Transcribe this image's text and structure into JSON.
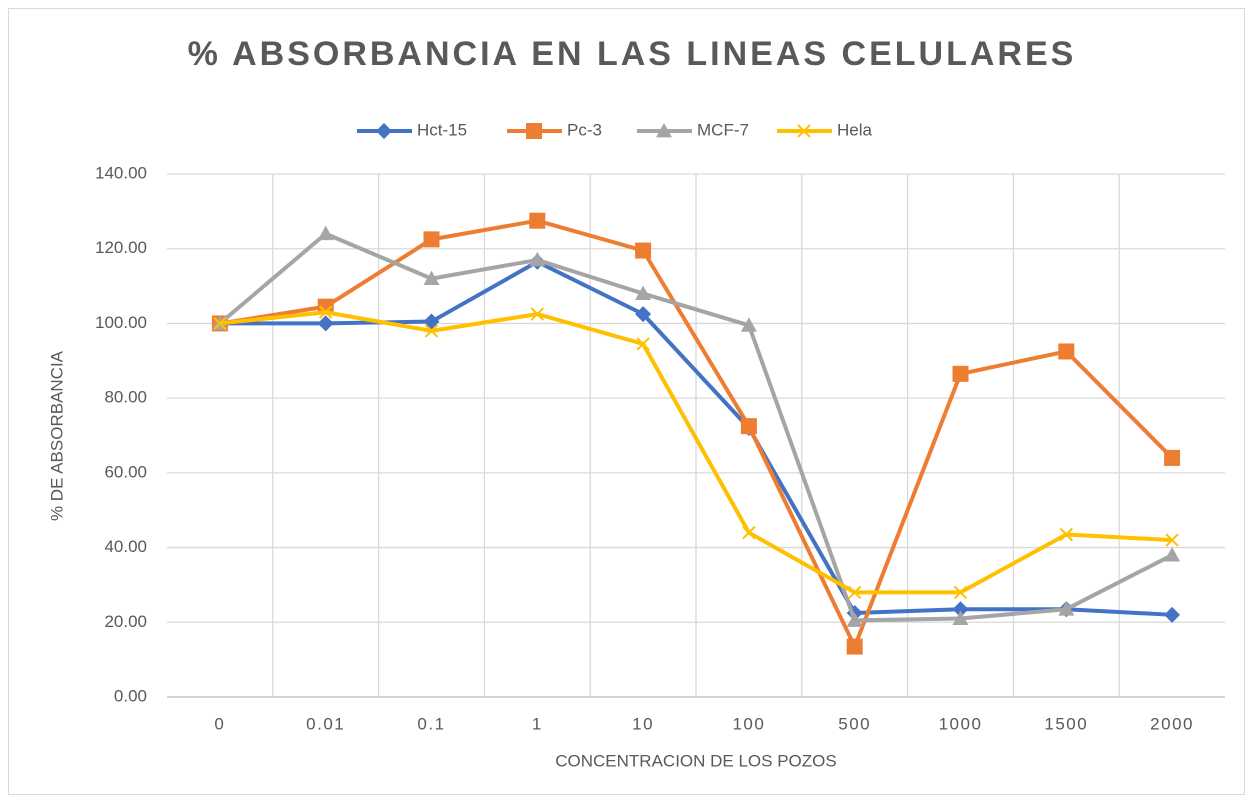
{
  "chart_data": {
    "type": "line",
    "title": "% ABSORBANCIA EN LAS LINEAS CELULARES",
    "xlabel": "CONCENTRACION DE LOS POZOS",
    "ylabel": "% DE ABSORBANCIA",
    "categories": [
      "0",
      "0.01",
      "0.1",
      "1",
      "10",
      "100",
      "500",
      "1000",
      "1500",
      "2000"
    ],
    "series": [
      {
        "name": "Hct-15",
        "color": "#4472c4",
        "marker": "diamond",
        "values": [
          100,
          100,
          100.5,
          116.5,
          102.5,
          72,
          22.5,
          23.5,
          23.5,
          22
        ]
      },
      {
        "name": "Pc-3",
        "color": "#ed7d31",
        "marker": "square",
        "values": [
          100,
          104.5,
          122.5,
          127.5,
          119.5,
          72.5,
          13.5,
          86.5,
          92.5,
          64
        ]
      },
      {
        "name": "MCF-7",
        "color": "#a5a5a5",
        "marker": "triangle",
        "values": [
          100,
          124,
          112,
          117,
          108,
          99.5,
          20.5,
          21,
          23.5,
          38
        ]
      },
      {
        "name": "Hela",
        "color": "#ffc000",
        "marker": "x",
        "values": [
          100,
          103,
          98,
          102.5,
          94.5,
          44,
          28,
          28,
          43.5,
          42
        ]
      }
    ],
    "ylim": [
      0,
      140
    ],
    "yticks": [
      {
        "value": 0,
        "label": "0.00"
      },
      {
        "value": 20,
        "label": "20.00"
      },
      {
        "value": 40,
        "label": "40.00"
      },
      {
        "value": 60,
        "label": "60.00"
      },
      {
        "value": 80,
        "label": "80.00"
      },
      {
        "value": 100,
        "label": "100.00"
      },
      {
        "value": 120,
        "label": "120.00"
      },
      {
        "value": 140,
        "label": "140.00"
      }
    ],
    "grid": true,
    "legend": "top"
  }
}
